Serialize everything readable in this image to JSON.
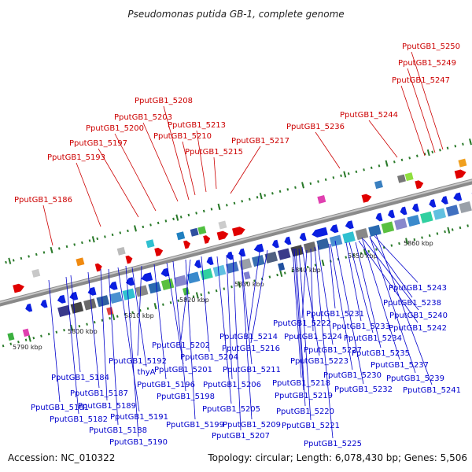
{
  "title": "Pseudomonas putida GB-1, complete genome",
  "footer": {
    "accession": "Accession: NC_010322",
    "topology": "Topology: circular; Length: 6,078,430 bp; Genes: 5,506"
  },
  "colors": {
    "forward_gene": "#e00000",
    "reverse_gene": "#0a1fe0",
    "forward_label": "#cc0000",
    "reverse_label": "#0000cc",
    "backbone": "#8a8a8a",
    "tick": "#2a7a2a"
  },
  "ticks": [
    "5790 kbp",
    "5800 kbp",
    "5810 kbp",
    "5820 kbp",
    "5830 kbp",
    "5840 kbp",
    "5850 kbp",
    "5860 kbp"
  ],
  "forward_labels": [
    "PputGB1_5250",
    "PputGB1_5249",
    "PputGB1_5247",
    "PputGB1_5244",
    "PputGB1_5236",
    "PputGB1_5217",
    "PputGB1_5215",
    "PputGB1_5213",
    "PputGB1_5210",
    "PputGB1_5208",
    "PputGB1_5203",
    "PputGB1_5200",
    "PputGB1_5197",
    "PputGB1_5193",
    "PputGB1_5186"
  ],
  "reverse_labels": [
    "PputGB1_5243",
    "PputGB1_5238",
    "PputGB1_5240",
    "PputGB1_5242",
    "PputGB1_5231",
    "PputGB1_5233",
    "PputGB1_5234",
    "PputGB1_5222",
    "PputGB1_5224",
    "PputGB1_5235",
    "PputGB1_5214",
    "PputGB1_5216",
    "PputGB1_5227",
    "PputGB1_5202",
    "PputGB1_5223",
    "PputGB1_5237",
    "PputGB1_5204",
    "PputGB1_5211",
    "PputGB1_5230",
    "PputGB1_5239",
    "PputGB1_5192",
    "PputGB1_5201",
    "PputGB1_5232",
    "PputGB1_5241",
    "thyA",
    "PputGB1_5218",
    "PputGB1_5184",
    "PputGB1_5196",
    "PputGB1_5206",
    "PputGB1_5187",
    "PputGB1_5198",
    "PputGB1_5219",
    "PputGB1_5189",
    "PputGB1_5181",
    "PputGB1_5220",
    "PputGB1_5205",
    "PputGB1_5191",
    "PputGB1_5182",
    "PputGB1_5199",
    "PputGB1_5209",
    "PputGB1_5221",
    "PputGB1_5188",
    "PputGB1_5207",
    "PputGB1_5190",
    "PputGB1_5225"
  ]
}
